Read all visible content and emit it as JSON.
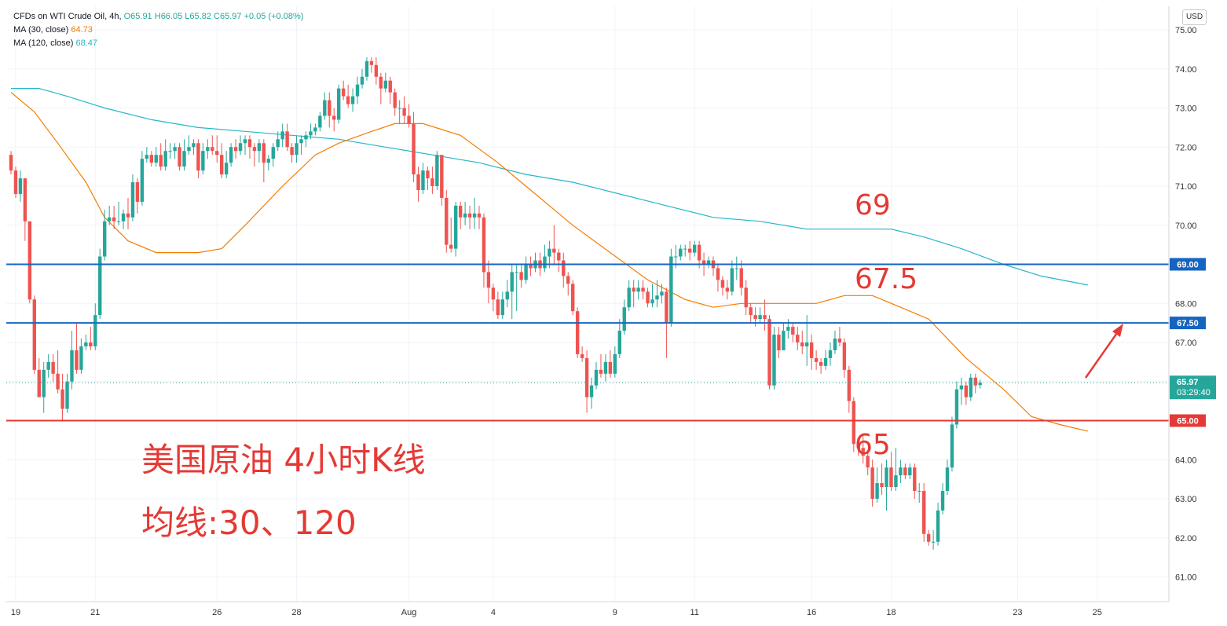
{
  "legend": {
    "symbol": "CFDs on WTI Crude Oil, 4h, ",
    "open": "O65.91",
    "high": "H66.05",
    "low": "L65.82",
    "close": "C65.97",
    "change": "+0.05 (+0.08%)",
    "ma30_label": "MA (30, close)",
    "ma30_value": "64.73",
    "ma120_label": "MA (120, close)",
    "ma120_value": "68.47"
  },
  "currency": "USD",
  "last_price": {
    "value": "65.97",
    "countdown": "03:29:40"
  },
  "annotations": {
    "title": "美国原油 4小时K线",
    "subtitle": "均线:30、120",
    "level_69": "69",
    "level_675": "67.5",
    "level_65": "65"
  },
  "colors": {
    "up": "#26a69a",
    "down": "#ef5350",
    "ma30": "#f57c00",
    "ma120": "#26b6c9",
    "blue_line": "#1565c0",
    "red_line": "#e53935",
    "annotation": "#e53935"
  },
  "chart_data": {
    "type": "candlestick",
    "y_range": [
      60.5,
      75.2
    ],
    "y_ticks": [
      "61.00",
      "62.00",
      "63.00",
      "64.00",
      "65.00",
      "66.00",
      "67.00",
      "68.00",
      "69.00",
      "70.00",
      "71.00",
      "72.00",
      "73.00",
      "74.00",
      "75.00"
    ],
    "x_ticks": [
      "19",
      "21",
      "26",
      "28",
      "Aug",
      "4",
      "9",
      "11",
      "16",
      "18",
      "23",
      "25"
    ],
    "x_tick_index": [
      1,
      18,
      44,
      61,
      85,
      103,
      129,
      146,
      171,
      188,
      215,
      232
    ],
    "horizontal_lines": [
      {
        "price": 69.0,
        "label": "69.00",
        "color": "#1565c0"
      },
      {
        "price": 67.5,
        "label": "67.50",
        "color": "#1565c0"
      },
      {
        "price": 65.0,
        "label": "65.00",
        "color": "#e53935"
      }
    ],
    "candles": [
      [
        71.8,
        71.4,
        71.9,
        71.3
      ],
      [
        71.4,
        70.8,
        71.5,
        70.7
      ],
      [
        70.8,
        71.2,
        71.4,
        70.6
      ],
      [
        71.2,
        70.1,
        71.2,
        69.6
      ],
      [
        70.1,
        68.1,
        70.1,
        68.0
      ],
      [
        68.1,
        66.3,
        68.2,
        66.2
      ],
      [
        66.3,
        65.6,
        66.6,
        65.6
      ],
      [
        65.6,
        66.3,
        66.5,
        65.2
      ],
      [
        66.3,
        66.5,
        66.7,
        66.1
      ],
      [
        66.5,
        66.2,
        66.7,
        66.0
      ],
      [
        66.2,
        65.8,
        66.8,
        65.7
      ],
      [
        65.8,
        65.3,
        66.2,
        65.0
      ],
      [
        65.3,
        66.0,
        66.2,
        65.2
      ],
      [
        66.0,
        66.8,
        67.3,
        65.8
      ],
      [
        66.8,
        66.3,
        67.5,
        66.2
      ],
      [
        66.3,
        66.9,
        67.1,
        66.2
      ],
      [
        66.9,
        67.0,
        67.2,
        66.8
      ],
      [
        67.0,
        66.9,
        67.4,
        66.8
      ],
      [
        66.9,
        67.7,
        68.0,
        66.8
      ],
      [
        67.7,
        69.2,
        69.4,
        67.6
      ],
      [
        69.2,
        70.1,
        70.4,
        69.1
      ],
      [
        70.1,
        70.2,
        70.5,
        70.0
      ],
      [
        70.2,
        70.1,
        70.5,
        69.9
      ],
      [
        70.1,
        70.1,
        70.6,
        70.0
      ],
      [
        70.1,
        70.3,
        70.4,
        69.9
      ],
      [
        70.3,
        70.2,
        70.7,
        69.9
      ],
      [
        70.2,
        71.1,
        71.3,
        70.1
      ],
      [
        71.1,
        70.6,
        71.2,
        70.3
      ],
      [
        70.6,
        71.7,
        71.9,
        70.5
      ],
      [
        71.7,
        71.8,
        72.0,
        71.6
      ],
      [
        71.8,
        71.6,
        71.9,
        71.5
      ],
      [
        71.6,
        71.8,
        72.0,
        71.5
      ],
      [
        71.8,
        71.5,
        72.1,
        71.4
      ],
      [
        71.5,
        71.9,
        72.2,
        71.4
      ],
      [
        71.9,
        71.9,
        72.1,
        71.7
      ],
      [
        71.9,
        72.0,
        72.1,
        71.7
      ],
      [
        72.0,
        71.5,
        72.1,
        71.4
      ],
      [
        71.5,
        71.9,
        72.2,
        71.4
      ],
      [
        71.9,
        72.0,
        72.3,
        71.8
      ],
      [
        72.0,
        72.1,
        72.2,
        71.8
      ],
      [
        72.1,
        71.4,
        72.2,
        71.2
      ],
      [
        71.4,
        71.9,
        72.1,
        71.3
      ],
      [
        71.9,
        72.0,
        72.2,
        71.7
      ],
      [
        72.0,
        71.9,
        72.3,
        71.8
      ],
      [
        71.9,
        71.8,
        72.3,
        71.6
      ],
      [
        71.8,
        71.3,
        72.1,
        71.2
      ],
      [
        71.3,
        71.6,
        71.9,
        71.2
      ],
      [
        71.6,
        72.0,
        72.1,
        71.5
      ],
      [
        72.0,
        71.9,
        72.2,
        71.7
      ],
      [
        71.9,
        72.1,
        72.3,
        71.8
      ],
      [
        72.1,
        72.2,
        72.3,
        71.8
      ],
      [
        72.2,
        72.0,
        72.3,
        71.7
      ],
      [
        72.0,
        71.9,
        72.1,
        71.5
      ],
      [
        71.9,
        72.1,
        72.2,
        71.6
      ],
      [
        72.1,
        71.6,
        72.2,
        71.1
      ],
      [
        71.6,
        71.7,
        71.8,
        71.4
      ],
      [
        71.7,
        72.0,
        72.1,
        71.5
      ],
      [
        72.0,
        72.2,
        72.4,
        71.9
      ],
      [
        72.2,
        72.4,
        72.6,
        72.0
      ],
      [
        72.4,
        72.0,
        72.6,
        71.9
      ],
      [
        72.0,
        71.8,
        72.1,
        71.6
      ],
      [
        71.8,
        72.1,
        72.3,
        71.6
      ],
      [
        72.1,
        72.2,
        72.3,
        71.8
      ],
      [
        72.2,
        72.3,
        72.4,
        72.0
      ],
      [
        72.3,
        72.4,
        72.6,
        72.2
      ],
      [
        72.4,
        72.5,
        72.6,
        72.3
      ],
      [
        72.5,
        72.8,
        72.9,
        72.4
      ],
      [
        72.8,
        73.2,
        73.4,
        72.7
      ],
      [
        73.2,
        72.8,
        73.4,
        72.5
      ],
      [
        72.8,
        72.7,
        73.0,
        72.4
      ],
      [
        72.7,
        73.5,
        73.6,
        72.6
      ],
      [
        73.5,
        73.3,
        73.7,
        73.2
      ],
      [
        73.3,
        73.1,
        73.6,
        73.0
      ],
      [
        73.1,
        73.3,
        73.5,
        72.9
      ],
      [
        73.3,
        73.6,
        73.8,
        73.1
      ],
      [
        73.6,
        73.8,
        74.0,
        73.5
      ],
      [
        73.8,
        74.2,
        74.3,
        73.7
      ],
      [
        74.2,
        74.1,
        74.3,
        73.9
      ],
      [
        74.1,
        73.8,
        74.3,
        73.6
      ],
      [
        73.8,
        73.5,
        73.9,
        73.1
      ],
      [
        73.5,
        73.7,
        73.9,
        73.4
      ],
      [
        73.7,
        73.4,
        73.8,
        73.1
      ],
      [
        73.4,
        73.0,
        73.5,
        72.8
      ],
      [
        73.0,
        73.0,
        73.2,
        72.6
      ],
      [
        73.0,
        72.8,
        73.3,
        72.6
      ],
      [
        72.8,
        72.6,
        73.1,
        72.5
      ],
      [
        72.6,
        71.3,
        72.9,
        71.1
      ],
      [
        71.3,
        70.9,
        71.5,
        70.6
      ],
      [
        70.9,
        71.4,
        71.6,
        70.8
      ],
      [
        71.4,
        71.2,
        71.5,
        70.9
      ],
      [
        71.2,
        71.0,
        71.5,
        70.8
      ],
      [
        71.0,
        71.8,
        71.9,
        70.9
      ],
      [
        71.8,
        70.7,
        71.8,
        70.5
      ],
      [
        70.7,
        69.5,
        70.9,
        69.3
      ],
      [
        69.5,
        69.4,
        70.2,
        69.3
      ],
      [
        69.4,
        70.5,
        70.6,
        69.2
      ],
      [
        70.5,
        70.2,
        70.6,
        69.9
      ],
      [
        70.2,
        70.3,
        70.6,
        70.0
      ],
      [
        70.3,
        70.2,
        70.5,
        69.9
      ],
      [
        70.2,
        70.3,
        70.7,
        69.9
      ],
      [
        70.3,
        70.2,
        70.5,
        69.9
      ],
      [
        70.2,
        68.8,
        70.3,
        68.4
      ],
      [
        68.8,
        68.4,
        69.1,
        68.0
      ],
      [
        68.4,
        68.1,
        68.5,
        67.8
      ],
      [
        68.1,
        67.7,
        68.3,
        67.6
      ],
      [
        67.7,
        68.1,
        68.3,
        67.6
      ],
      [
        68.1,
        68.3,
        68.6,
        67.9
      ],
      [
        68.3,
        68.8,
        69.0,
        67.6
      ],
      [
        68.8,
        68.8,
        69.0,
        67.8
      ],
      [
        68.8,
        68.6,
        69.0,
        68.4
      ],
      [
        68.6,
        69.0,
        69.2,
        68.5
      ],
      [
        69.0,
        68.9,
        69.2,
        68.7
      ],
      [
        68.9,
        69.1,
        69.3,
        68.8
      ],
      [
        69.1,
        68.9,
        69.3,
        68.7
      ],
      [
        68.9,
        69.2,
        69.5,
        68.8
      ],
      [
        69.2,
        69.4,
        69.6,
        68.9
      ],
      [
        69.4,
        69.3,
        70.0,
        69.0
      ],
      [
        69.3,
        69.1,
        69.4,
        68.8
      ],
      [
        69.1,
        68.7,
        69.3,
        68.4
      ],
      [
        68.7,
        68.5,
        68.8,
        68.2
      ],
      [
        68.5,
        67.8,
        68.6,
        67.7
      ],
      [
        67.8,
        66.7,
        67.9,
        66.6
      ],
      [
        66.7,
        66.6,
        66.9,
        66.5
      ],
      [
        66.6,
        65.6,
        66.8,
        65.2
      ],
      [
        65.6,
        65.9,
        66.1,
        65.3
      ],
      [
        65.9,
        66.3,
        66.5,
        65.8
      ],
      [
        66.3,
        66.2,
        66.7,
        66.1
      ],
      [
        66.2,
        66.5,
        66.7,
        66.0
      ],
      [
        66.5,
        66.2,
        66.8,
        66.1
      ],
      [
        66.2,
        66.7,
        66.9,
        66.1
      ],
      [
        66.7,
        67.3,
        67.6,
        66.6
      ],
      [
        67.3,
        67.9,
        68.1,
        67.2
      ],
      [
        67.9,
        68.4,
        68.6,
        67.8
      ],
      [
        68.4,
        68.3,
        68.6,
        67.9
      ],
      [
        68.3,
        68.4,
        68.6,
        68.1
      ],
      [
        68.4,
        68.3,
        68.6,
        68.1
      ],
      [
        68.3,
        68.0,
        68.4,
        67.9
      ],
      [
        68.0,
        68.1,
        68.5,
        67.9
      ],
      [
        68.1,
        68.2,
        68.6,
        67.9
      ],
      [
        68.2,
        68.3,
        68.5,
        68.0
      ],
      [
        68.3,
        67.5,
        68.4,
        66.6
      ],
      [
        67.5,
        69.2,
        69.4,
        67.4
      ],
      [
        69.2,
        69.2,
        69.5,
        68.9
      ],
      [
        69.2,
        69.4,
        69.5,
        69.1
      ],
      [
        69.4,
        69.4,
        69.5,
        69.2
      ],
      [
        69.4,
        69.3,
        69.6,
        69.1
      ],
      [
        69.3,
        69.5,
        69.6,
        69.2
      ],
      [
        69.5,
        69.1,
        69.6,
        68.9
      ],
      [
        69.1,
        69.0,
        69.3,
        68.7
      ],
      [
        69.0,
        69.1,
        69.2,
        68.9
      ],
      [
        69.1,
        68.9,
        69.2,
        68.7
      ],
      [
        68.9,
        68.6,
        69.0,
        68.3
      ],
      [
        68.6,
        68.4,
        68.7,
        68.2
      ],
      [
        68.4,
        68.3,
        68.6,
        68.1
      ],
      [
        68.3,
        68.9,
        69.1,
        68.2
      ],
      [
        68.9,
        68.9,
        69.2,
        68.6
      ],
      [
        68.9,
        68.4,
        69.1,
        68.2
      ],
      [
        68.4,
        67.9,
        68.6,
        67.7
      ],
      [
        67.9,
        67.7,
        68.0,
        67.5
      ],
      [
        67.7,
        67.6,
        67.9,
        67.4
      ],
      [
        67.6,
        67.7,
        67.9,
        67.5
      ],
      [
        67.7,
        67.6,
        68.1,
        67.3
      ],
      [
        67.6,
        65.9,
        67.7,
        65.8
      ],
      [
        65.9,
        67.2,
        67.4,
        65.8
      ],
      [
        67.2,
        66.8,
        67.4,
        66.6
      ],
      [
        66.8,
        67.3,
        67.5,
        66.9
      ],
      [
        67.3,
        67.4,
        67.6,
        67.1
      ],
      [
        67.4,
        67.2,
        67.5,
        67.0
      ],
      [
        67.2,
        67.0,
        67.4,
        66.8
      ],
      [
        67.0,
        66.9,
        67.3,
        66.7
      ],
      [
        66.9,
        67.0,
        67.7,
        66.4
      ],
      [
        67.0,
        66.6,
        67.2,
        66.3
      ],
      [
        66.6,
        66.5,
        66.8,
        66.3
      ],
      [
        66.5,
        66.4,
        66.6,
        66.2
      ],
      [
        66.4,
        66.6,
        66.8,
        66.3
      ],
      [
        66.6,
        66.8,
        67.0,
        66.4
      ],
      [
        66.8,
        67.1,
        67.3,
        66.7
      ],
      [
        67.1,
        67.0,
        67.4,
        66.9
      ],
      [
        67.0,
        66.3,
        67.1,
        66.1
      ],
      [
        66.3,
        65.5,
        66.4,
        65.2
      ],
      [
        65.5,
        64.4,
        65.6,
        64.2
      ],
      [
        64.4,
        64.3,
        64.5,
        64.1
      ],
      [
        64.3,
        64.1,
        64.6,
        63.9
      ],
      [
        64.1,
        63.8,
        64.2,
        63.6
      ],
      [
        63.8,
        63.0,
        64.0,
        62.8
      ],
      [
        63.0,
        63.4,
        63.8,
        62.9
      ],
      [
        63.4,
        63.3,
        63.9,
        63.1
      ],
      [
        63.3,
        63.8,
        64.0,
        62.7
      ],
      [
        63.8,
        63.3,
        64.2,
        63.2
      ],
      [
        63.3,
        63.6,
        64.3,
        63.2
      ],
      [
        63.6,
        63.8,
        64.0,
        63.4
      ],
      [
        63.8,
        63.6,
        63.9,
        63.5
      ],
      [
        63.6,
        63.8,
        63.9,
        63.5
      ],
      [
        63.8,
        63.2,
        63.9,
        63.0
      ],
      [
        63.2,
        63.2,
        63.4,
        62.9
      ],
      [
        63.2,
        62.1,
        63.4,
        61.9
      ],
      [
        62.1,
        61.9,
        62.2,
        61.8
      ],
      [
        61.9,
        61.9,
        62.2,
        61.7
      ],
      [
        61.9,
        62.7,
        62.9,
        61.8
      ],
      [
        62.7,
        63.2,
        63.4,
        62.6
      ],
      [
        63.2,
        63.8,
        64.0,
        63.1
      ],
      [
        63.8,
        64.9,
        65.1,
        63.7
      ],
      [
        64.9,
        65.8,
        66.0,
        64.8
      ],
      [
        65.8,
        65.9,
        66.1,
        65.4
      ],
      [
        65.9,
        65.6,
        66.0,
        65.4
      ],
      [
        65.6,
        66.1,
        66.2,
        65.5
      ],
      [
        66.1,
        65.9,
        66.2,
        65.7
      ],
      [
        65.91,
        65.97,
        66.05,
        65.82
      ]
    ],
    "ma30": [
      [
        0,
        73.4
      ],
      [
        5,
        72.9
      ],
      [
        10,
        72.1
      ],
      [
        16,
        71.1
      ],
      [
        20,
        70.2
      ],
      [
        25,
        69.6
      ],
      [
        31,
        69.3
      ],
      [
        40,
        69.3
      ],
      [
        45,
        69.4
      ],
      [
        50,
        70.0
      ],
      [
        58,
        71.0
      ],
      [
        65,
        71.8
      ],
      [
        70,
        72.1
      ],
      [
        77,
        72.4
      ],
      [
        82,
        72.6
      ],
      [
        88,
        72.6
      ],
      [
        96,
        72.3
      ],
      [
        104,
        71.6
      ],
      [
        112,
        70.8
      ],
      [
        120,
        70.0
      ],
      [
        128,
        69.3
      ],
      [
        136,
        68.6
      ],
      [
        144,
        68.1
      ],
      [
        150,
        67.9
      ],
      [
        156,
        68.0
      ],
      [
        164,
        68.0
      ],
      [
        172,
        68.0
      ],
      [
        178,
        68.2
      ],
      [
        184,
        68.2
      ],
      [
        190,
        67.9
      ],
      [
        196,
        67.6
      ],
      [
        204,
        66.6
      ],
      [
        212,
        65.8
      ],
      [
        218,
        65.1
      ],
      [
        224,
        64.9
      ],
      [
        230,
        64.73
      ]
    ],
    "ma120": [
      [
        0,
        73.5
      ],
      [
        6,
        73.5
      ],
      [
        12,
        73.3
      ],
      [
        20,
        73.0
      ],
      [
        30,
        72.7
      ],
      [
        40,
        72.5
      ],
      [
        50,
        72.4
      ],
      [
        60,
        72.3
      ],
      [
        70,
        72.2
      ],
      [
        80,
        72.0
      ],
      [
        90,
        71.8
      ],
      [
        100,
        71.6
      ],
      [
        110,
        71.3
      ],
      [
        120,
        71.1
      ],
      [
        130,
        70.8
      ],
      [
        140,
        70.5
      ],
      [
        150,
        70.2
      ],
      [
        160,
        70.1
      ],
      [
        170,
        69.9
      ],
      [
        180,
        69.9
      ],
      [
        188,
        69.9
      ],
      [
        195,
        69.7
      ],
      [
        203,
        69.4
      ],
      [
        212,
        69.0
      ],
      [
        220,
        68.7
      ],
      [
        230,
        68.47
      ]
    ]
  }
}
